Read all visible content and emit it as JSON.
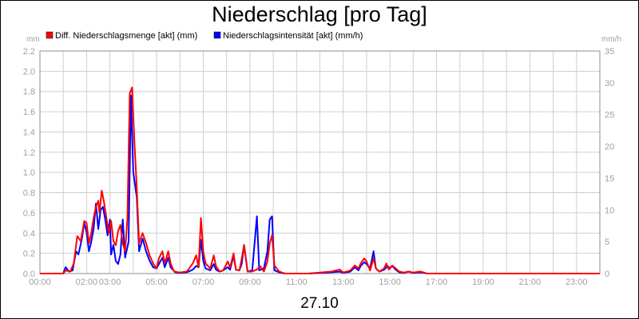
{
  "chart_data": {
    "type": "line",
    "title": "Niederschlag [pro Tag]",
    "date_label": "27.10",
    "y_left_unit": "mm",
    "y_right_unit": "mm/h",
    "y_left_range": [
      0,
      2.2
    ],
    "y_left_ticks": [
      "0.0",
      "0.2",
      "0.4",
      "0.6",
      "0.8",
      "1.0",
      "1.2",
      "1.4",
      "1.6",
      "1.8",
      "2.0",
      "2.2"
    ],
    "y_right_range": [
      0,
      35
    ],
    "y_right_ticks": [
      "0",
      "5",
      "10",
      "15",
      "20",
      "25",
      "30",
      "35"
    ],
    "x_range_hours": [
      0,
      24
    ],
    "x_tick_labels": [
      "00:00",
      "02:00",
      "03:00",
      "05:00",
      "07:00",
      "09:00",
      "11:00",
      "13:00",
      "15:00",
      "17:00",
      "19:00",
      "21:00",
      "23:00"
    ],
    "x_tick_hours": [
      0,
      2,
      3,
      5,
      7,
      9,
      11,
      13,
      15,
      17,
      19,
      21,
      23
    ],
    "grid": true,
    "legend_position": "top-left",
    "series": [
      {
        "name": "Diff. Niederschlagsmenge [akt] (mm)",
        "color": "#ff0000",
        "axis": "left",
        "points": [
          [
            0,
            0
          ],
          [
            1.0,
            0
          ],
          [
            1.1,
            0.03
          ],
          [
            1.3,
            0.02
          ],
          [
            1.45,
            0.1
          ],
          [
            1.6,
            0.37
          ],
          [
            1.75,
            0.32
          ],
          [
            1.9,
            0.52
          ],
          [
            2.0,
            0.5
          ],
          [
            2.1,
            0.3
          ],
          [
            2.2,
            0.4
          ],
          [
            2.3,
            0.55
          ],
          [
            2.4,
            0.66
          ],
          [
            2.5,
            0.72
          ],
          [
            2.55,
            0.6
          ],
          [
            2.65,
            0.82
          ],
          [
            2.75,
            0.7
          ],
          [
            2.85,
            0.55
          ],
          [
            2.95,
            0.4
          ],
          [
            3.05,
            0.52
          ],
          [
            3.15,
            0.32
          ],
          [
            3.25,
            0.28
          ],
          [
            3.35,
            0.42
          ],
          [
            3.45,
            0.48
          ],
          [
            3.55,
            0.3
          ],
          [
            3.65,
            0.22
          ],
          [
            3.75,
            0.55
          ],
          [
            3.85,
            1.78
          ],
          [
            3.95,
            1.84
          ],
          [
            4.05,
            1.3
          ],
          [
            4.15,
            0.85
          ],
          [
            4.25,
            0.3
          ],
          [
            4.4,
            0.4
          ],
          [
            4.55,
            0.3
          ],
          [
            4.7,
            0.18
          ],
          [
            4.85,
            0.1
          ],
          [
            5.0,
            0.05
          ],
          [
            5.1,
            0.15
          ],
          [
            5.25,
            0.22
          ],
          [
            5.35,
            0.1
          ],
          [
            5.5,
            0.22
          ],
          [
            5.6,
            0.1
          ],
          [
            5.75,
            0.02
          ],
          [
            6.0,
            0.01
          ],
          [
            6.3,
            0.02
          ],
          [
            6.55,
            0.1
          ],
          [
            6.7,
            0.18
          ],
          [
            6.8,
            0.06
          ],
          [
            6.9,
            0.55
          ],
          [
            7.0,
            0.22
          ],
          [
            7.1,
            0.1
          ],
          [
            7.3,
            0.05
          ],
          [
            7.45,
            0.18
          ],
          [
            7.55,
            0.07
          ],
          [
            7.7,
            0.02
          ],
          [
            7.85,
            0.03
          ],
          [
            8.05,
            0.12
          ],
          [
            8.15,
            0.06
          ],
          [
            8.3,
            0.2
          ],
          [
            8.4,
            0.04
          ],
          [
            8.55,
            0.03
          ],
          [
            8.65,
            0.15
          ],
          [
            8.75,
            0.28
          ],
          [
            8.9,
            0.02
          ],
          [
            9.1,
            0.02
          ],
          [
            9.3,
            0.04
          ],
          [
            9.45,
            0.07
          ],
          [
            9.6,
            0.02
          ],
          [
            9.75,
            0.12
          ],
          [
            9.85,
            0.3
          ],
          [
            9.95,
            0.38
          ],
          [
            10.05,
            0.08
          ],
          [
            10.25,
            0.02
          ],
          [
            10.5,
            0
          ],
          [
            11.5,
            0
          ],
          [
            12.0,
            0.01
          ],
          [
            12.5,
            0.02
          ],
          [
            12.85,
            0.04
          ],
          [
            13.0,
            0.01
          ],
          [
            13.3,
            0.03
          ],
          [
            13.5,
            0.08
          ],
          [
            13.65,
            0.05
          ],
          [
            13.75,
            0.1
          ],
          [
            13.9,
            0.15
          ],
          [
            14.0,
            0.12
          ],
          [
            14.15,
            0.03
          ],
          [
            14.3,
            0.15
          ],
          [
            14.4,
            0.05
          ],
          [
            14.55,
            0.02
          ],
          [
            14.75,
            0.05
          ],
          [
            14.85,
            0.1
          ],
          [
            14.95,
            0.04
          ],
          [
            15.1,
            0.08
          ],
          [
            15.25,
            0.05
          ],
          [
            15.4,
            0.02
          ],
          [
            15.6,
            0.01
          ],
          [
            15.8,
            0.02
          ],
          [
            16.0,
            0.01
          ],
          [
            16.3,
            0.02
          ],
          [
            16.6,
            0
          ],
          [
            24,
            0
          ]
        ]
      },
      {
        "name": "Niederschlagsintensität [akt] (mm/h)",
        "color": "#0000ff",
        "axis": "right",
        "points": [
          [
            0,
            0
          ],
          [
            1.0,
            0
          ],
          [
            1.1,
            1.0
          ],
          [
            1.25,
            0.3
          ],
          [
            1.4,
            0.5
          ],
          [
            1.55,
            3.5
          ],
          [
            1.65,
            3.0
          ],
          [
            1.8,
            5.5
          ],
          [
            1.9,
            8.0
          ],
          [
            2.0,
            6.5
          ],
          [
            2.1,
            3.5
          ],
          [
            2.2,
            5.0
          ],
          [
            2.3,
            7.0
          ],
          [
            2.4,
            11.0
          ],
          [
            2.5,
            7.0
          ],
          [
            2.6,
            10.0
          ],
          [
            2.7,
            10.5
          ],
          [
            2.8,
            8.5
          ],
          [
            2.9,
            6.0
          ],
          [
            3.0,
            8.5
          ],
          [
            3.05,
            3.0
          ],
          [
            3.15,
            4.5
          ],
          [
            3.25,
            2.0
          ],
          [
            3.35,
            1.5
          ],
          [
            3.45,
            3.0
          ],
          [
            3.55,
            8.5
          ],
          [
            3.65,
            2.5
          ],
          [
            3.8,
            5.0
          ],
          [
            3.9,
            28.0
          ],
          [
            4.0,
            16.0
          ],
          [
            4.15,
            12.0
          ],
          [
            4.25,
            3.5
          ],
          [
            4.4,
            5.5
          ],
          [
            4.55,
            3.5
          ],
          [
            4.7,
            2.0
          ],
          [
            4.85,
            1.0
          ],
          [
            5.0,
            0.8
          ],
          [
            5.1,
            1.5
          ],
          [
            5.25,
            2.5
          ],
          [
            5.35,
            1.0
          ],
          [
            5.5,
            2.5
          ],
          [
            5.6,
            1.0
          ],
          [
            5.8,
            0.2
          ],
          [
            6.0,
            0.1
          ],
          [
            6.3,
            0.2
          ],
          [
            6.55,
            0.6
          ],
          [
            6.7,
            1.2
          ],
          [
            6.8,
            1.0
          ],
          [
            6.9,
            5.3
          ],
          [
            7.0,
            2.0
          ],
          [
            7.1,
            0.8
          ],
          [
            7.3,
            0.5
          ],
          [
            7.45,
            1.5
          ],
          [
            7.55,
            0.6
          ],
          [
            7.7,
            0.3
          ],
          [
            7.85,
            0.5
          ],
          [
            8.05,
            1.0
          ],
          [
            8.15,
            0.6
          ],
          [
            8.3,
            2.8
          ],
          [
            8.4,
            0.6
          ],
          [
            8.55,
            0.5
          ],
          [
            8.65,
            1.5
          ],
          [
            8.75,
            4.5
          ],
          [
            8.9,
            0.3
          ],
          [
            9.1,
            0.5
          ],
          [
            9.3,
            9.0
          ],
          [
            9.4,
            0.5
          ],
          [
            9.6,
            0.8
          ],
          [
            9.75,
            3.5
          ],
          [
            9.85,
            8.5
          ],
          [
            9.95,
            9.0
          ],
          [
            10.05,
            0.5
          ],
          [
            10.25,
            0.2
          ],
          [
            10.5,
            0
          ],
          [
            11.5,
            0
          ],
          [
            12.0,
            0.1
          ],
          [
            12.5,
            0.2
          ],
          [
            12.85,
            0.3
          ],
          [
            13.0,
            0.1
          ],
          [
            13.3,
            0.3
          ],
          [
            13.5,
            1.0
          ],
          [
            13.65,
            0.5
          ],
          [
            13.75,
            1.2
          ],
          [
            13.9,
            1.8
          ],
          [
            14.0,
            1.5
          ],
          [
            14.15,
            0.8
          ],
          [
            14.3,
            3.5
          ],
          [
            14.4,
            0.8
          ],
          [
            14.55,
            0.3
          ],
          [
            14.75,
            0.6
          ],
          [
            14.9,
            1.2
          ],
          [
            15.0,
            0.8
          ],
          [
            15.1,
            1.2
          ],
          [
            15.25,
            0.6
          ],
          [
            15.4,
            0.2
          ],
          [
            15.6,
            0.1
          ],
          [
            15.8,
            0.3
          ],
          [
            16.0,
            0.1
          ],
          [
            16.3,
            0.2
          ],
          [
            16.6,
            0
          ],
          [
            24,
            0
          ]
        ]
      }
    ]
  }
}
